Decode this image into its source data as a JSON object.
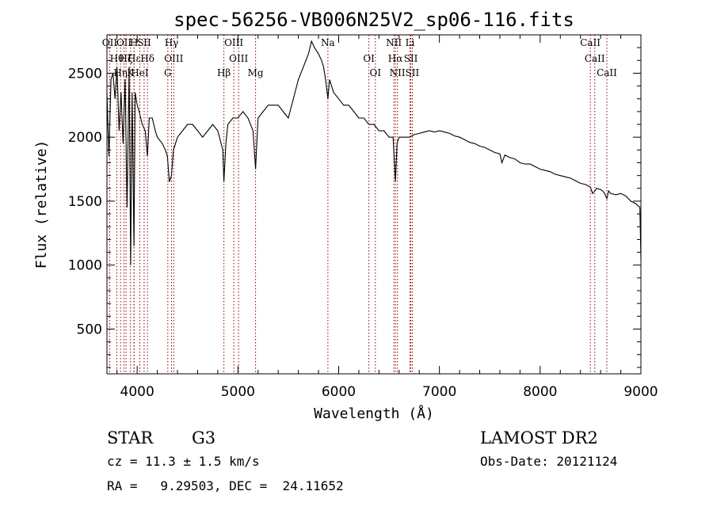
{
  "chart_data": {
    "type": "line",
    "title": "spec-56256-VB006N25V2_sp06-116.fits",
    "xlabel": "Wavelength (Å)",
    "ylabel": "Flux (relative)",
    "xlim": [
      3700,
      9000
    ],
    "ylim": [
      150,
      2800
    ],
    "xticks": [
      4000,
      5000,
      6000,
      7000,
      8000,
      9000
    ],
    "yticks": [
      500,
      1000,
      1500,
      2000,
      2500
    ],
    "grid": false,
    "line_color": "#000000",
    "marker_color": "#8b0000",
    "series": [
      {
        "x": [
          3700,
          3720,
          3740,
          3760,
          3780,
          3800,
          3820,
          3840,
          3860,
          3880,
          3900,
          3920,
          3935,
          3950,
          3968,
          3980,
          4000,
          4020,
          4050,
          4080,
          4102,
          4120,
          4150,
          4180,
          4200,
          4250,
          4280,
          4300,
          4320,
          4340,
          4360,
          4380,
          4400,
          4450,
          4500,
          4550,
          4600,
          4650,
          4700,
          4750,
          4800,
          4850,
          4861,
          4880,
          4900,
          4950,
          5000,
          5050,
          5100,
          5150,
          5175,
          5190,
          5200,
          5250,
          5300,
          5350,
          5400,
          5450,
          5500,
          5550,
          5600,
          5650,
          5700,
          5730,
          5760,
          5800,
          5830,
          5850,
          5870,
          5893,
          5910,
          5950,
          6000,
          6050,
          6100,
          6150,
          6200,
          6250,
          6300,
          6350,
          6400,
          6450,
          6500,
          6540,
          6563,
          6580,
          6600,
          6650,
          6700,
          6750,
          6800,
          6850,
          6900,
          6950,
          7000,
          7050,
          7100,
          7150,
          7200,
          7250,
          7300,
          7350,
          7400,
          7450,
          7500,
          7550,
          7600,
          7620,
          7650,
          7700,
          7750,
          7800,
          7850,
          7900,
          7950,
          8000,
          8050,
          8100,
          8150,
          8200,
          8250,
          8300,
          8350,
          8400,
          8450,
          8498,
          8520,
          8542,
          8560,
          8600,
          8620,
          8640,
          8662,
          8680,
          8700,
          8750,
          8800,
          8850,
          8900,
          8950,
          8990,
          9000
        ],
        "y": [
          2350,
          1850,
          2450,
          2500,
          2300,
          2550,
          2050,
          2350,
          1950,
          2450,
          1450,
          2550,
          1000,
          2350,
          1150,
          2350,
          2250,
          2200,
          2100,
          2050,
          1850,
          2150,
          2150,
          2050,
          2000,
          1950,
          1900,
          1850,
          1650,
          1700,
          1900,
          1950,
          2000,
          2050,
          2100,
          2100,
          2050,
          2000,
          2050,
          2100,
          2050,
          1900,
          1650,
          1950,
          2100,
          2150,
          2150,
          2200,
          2150,
          2050,
          1750,
          2000,
          2150,
          2200,
          2250,
          2250,
          2250,
          2200,
          2150,
          2300,
          2450,
          2550,
          2650,
          2750,
          2700,
          2650,
          2600,
          2550,
          2450,
          2300,
          2450,
          2350,
          2300,
          2250,
          2250,
          2200,
          2150,
          2150,
          2100,
          2100,
          2050,
          2050,
          2000,
          2000,
          1650,
          1950,
          2000,
          2000,
          2000,
          2020,
          2030,
          2040,
          2050,
          2040,
          2050,
          2040,
          2030,
          2010,
          2000,
          1980,
          1960,
          1950,
          1930,
          1920,
          1900,
          1880,
          1870,
          1800,
          1860,
          1840,
          1830,
          1800,
          1790,
          1790,
          1770,
          1750,
          1740,
          1730,
          1710,
          1700,
          1690,
          1680,
          1660,
          1640,
          1630,
          1610,
          1560,
          1580,
          1600,
          1590,
          1580,
          1560,
          1520,
          1580,
          1560,
          1550,
          1560,
          1540,
          1500,
          1480,
          1450,
          1050
        ]
      }
    ],
    "lines": [
      {
        "wavelength": 3727,
        "label": "OII"
      },
      {
        "wavelength": 3798,
        "label": "Hθ"
      },
      {
        "wavelength": 3835,
        "label": "Hη"
      },
      {
        "wavelength": 3869,
        "label": "OII"
      },
      {
        "wavelength": 3889,
        "label": "Hζ"
      },
      {
        "wavelength": 3934,
        "label": "K"
      },
      {
        "wavelength": 3968,
        "label": "H"
      },
      {
        "wavelength": 3970,
        "label": "Hε"
      },
      {
        "wavelength": 4026,
        "label": "HeI"
      },
      {
        "wavelength": 4069,
        "label": "SII"
      },
      {
        "wavelength": 4102,
        "label": "Hδ"
      },
      {
        "wavelength": 4304,
        "label": "G"
      },
      {
        "wavelength": 4341,
        "label": "Hγ"
      },
      {
        "wavelength": 4363,
        "label": "OIII"
      },
      {
        "wavelength": 4861,
        "label": "Hβ"
      },
      {
        "wavelength": 4959,
        "label": "OIII"
      },
      {
        "wavelength": 5007,
        "label": "OIII"
      },
      {
        "wavelength": 5175,
        "label": "Mg"
      },
      {
        "wavelength": 5893,
        "label": "Na"
      },
      {
        "wavelength": 6300,
        "label": "OI"
      },
      {
        "wavelength": 6364,
        "label": "OI"
      },
      {
        "wavelength": 6548,
        "label": "NII"
      },
      {
        "wavelength": 6563,
        "label": "Hα"
      },
      {
        "wavelength": 6583,
        "label": "NII"
      },
      {
        "wavelength": 6708,
        "label": "Li"
      },
      {
        "wavelength": 6716,
        "label": "SII"
      },
      {
        "wavelength": 6731,
        "label": "SII"
      },
      {
        "wavelength": 8498,
        "label": "CaII"
      },
      {
        "wavelength": 8542,
        "label": "CaII"
      },
      {
        "wavelength": 8662,
        "label": "CaII"
      }
    ]
  },
  "info": {
    "object_class": "STAR",
    "subclass": "G3",
    "survey": "LAMOST DR2",
    "cz": "cz = 11.3 ± 1.5 km/s",
    "obs_date": "Obs-Date: 20121124",
    "coords": "RA =   9.29503, DEC =  24.11652"
  }
}
